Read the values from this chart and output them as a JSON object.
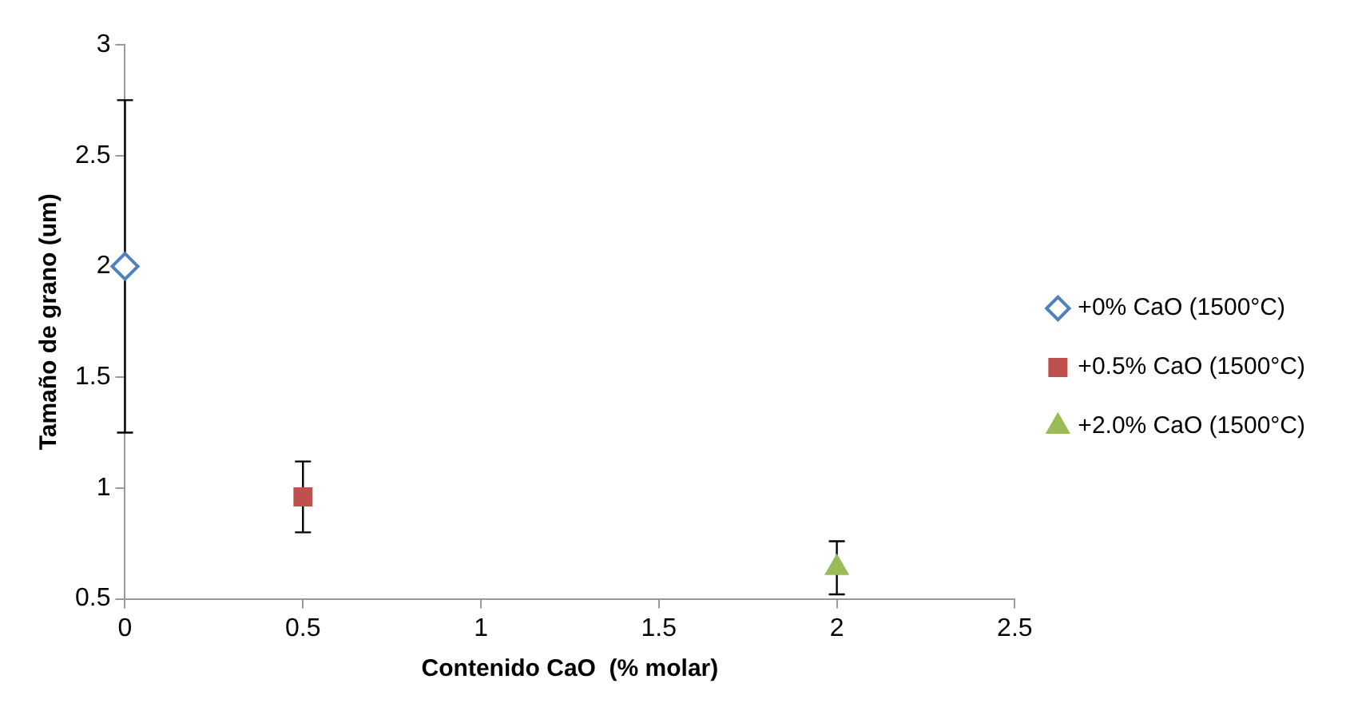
{
  "chart_data": {
    "type": "scatter",
    "xlabel": "Contenido CaO  (% molar)",
    "ylabel": "Tamaño de grano (um)",
    "xlim": [
      0,
      2.5
    ],
    "xticks": [
      0,
      0.5,
      1,
      1.5,
      2,
      2.5
    ],
    "ylim": [
      0.5,
      3
    ],
    "yticks": [
      0.5,
      1,
      1.5,
      2,
      2.5,
      3
    ],
    "grid": false,
    "legend": "right",
    "series": [
      {
        "name": "+0% CaO (1500°C)",
        "color": "#4f81bd",
        "marker": "diamond",
        "x": [
          0
        ],
        "values": [
          2.0
        ],
        "errors": [
          0.75
        ]
      },
      {
        "name": "+0.5% CaO (1500°C)",
        "color": "#c0504d",
        "marker": "square",
        "x": [
          0.5
        ],
        "values": [
          0.96
        ],
        "errors": [
          0.16
        ]
      },
      {
        "name": "+2.0% CaO (1500°C)",
        "color": "#9bbb59",
        "marker": "triangle",
        "x": [
          2
        ],
        "values": [
          0.64
        ],
        "errors": [
          0.12
        ]
      }
    ]
  }
}
